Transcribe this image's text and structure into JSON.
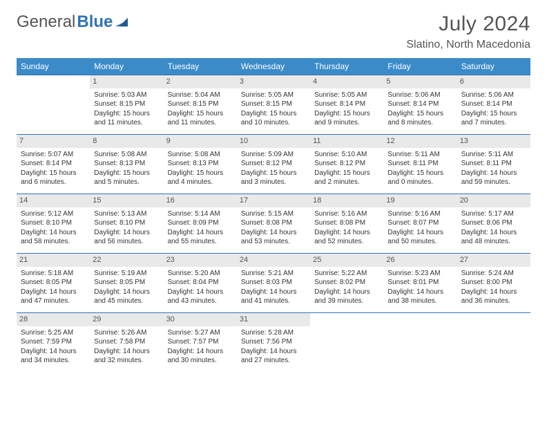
{
  "brand": {
    "text1": "General",
    "text2": "Blue"
  },
  "title": {
    "month": "July 2024",
    "location": "Slatino, North Macedonia"
  },
  "colors": {
    "header_bg": "#3b8bc9",
    "header_text": "#ffffff",
    "border": "#2f74b5",
    "daynum_bg": "#e9e9e9",
    "body_text": "#333333"
  },
  "weekdays": [
    "Sunday",
    "Monday",
    "Tuesday",
    "Wednesday",
    "Thursday",
    "Friday",
    "Saturday"
  ],
  "weeks": [
    [
      null,
      {
        "day": "1",
        "sunrise": "Sunrise: 5:03 AM",
        "sunset": "Sunset: 8:15 PM",
        "daylight": "Daylight: 15 hours and 11 minutes."
      },
      {
        "day": "2",
        "sunrise": "Sunrise: 5:04 AM",
        "sunset": "Sunset: 8:15 PM",
        "daylight": "Daylight: 15 hours and 11 minutes."
      },
      {
        "day": "3",
        "sunrise": "Sunrise: 5:05 AM",
        "sunset": "Sunset: 8:15 PM",
        "daylight": "Daylight: 15 hours and 10 minutes."
      },
      {
        "day": "4",
        "sunrise": "Sunrise: 5:05 AM",
        "sunset": "Sunset: 8:14 PM",
        "daylight": "Daylight: 15 hours and 9 minutes."
      },
      {
        "day": "5",
        "sunrise": "Sunrise: 5:06 AM",
        "sunset": "Sunset: 8:14 PM",
        "daylight": "Daylight: 15 hours and 8 minutes."
      },
      {
        "day": "6",
        "sunrise": "Sunrise: 5:06 AM",
        "sunset": "Sunset: 8:14 PM",
        "daylight": "Daylight: 15 hours and 7 minutes."
      }
    ],
    [
      {
        "day": "7",
        "sunrise": "Sunrise: 5:07 AM",
        "sunset": "Sunset: 8:14 PM",
        "daylight": "Daylight: 15 hours and 6 minutes."
      },
      {
        "day": "8",
        "sunrise": "Sunrise: 5:08 AM",
        "sunset": "Sunset: 8:13 PM",
        "daylight": "Daylight: 15 hours and 5 minutes."
      },
      {
        "day": "9",
        "sunrise": "Sunrise: 5:08 AM",
        "sunset": "Sunset: 8:13 PM",
        "daylight": "Daylight: 15 hours and 4 minutes."
      },
      {
        "day": "10",
        "sunrise": "Sunrise: 5:09 AM",
        "sunset": "Sunset: 8:12 PM",
        "daylight": "Daylight: 15 hours and 3 minutes."
      },
      {
        "day": "11",
        "sunrise": "Sunrise: 5:10 AM",
        "sunset": "Sunset: 8:12 PM",
        "daylight": "Daylight: 15 hours and 2 minutes."
      },
      {
        "day": "12",
        "sunrise": "Sunrise: 5:11 AM",
        "sunset": "Sunset: 8:11 PM",
        "daylight": "Daylight: 15 hours and 0 minutes."
      },
      {
        "day": "13",
        "sunrise": "Sunrise: 5:11 AM",
        "sunset": "Sunset: 8:11 PM",
        "daylight": "Daylight: 14 hours and 59 minutes."
      }
    ],
    [
      {
        "day": "14",
        "sunrise": "Sunrise: 5:12 AM",
        "sunset": "Sunset: 8:10 PM",
        "daylight": "Daylight: 14 hours and 58 minutes."
      },
      {
        "day": "15",
        "sunrise": "Sunrise: 5:13 AM",
        "sunset": "Sunset: 8:10 PM",
        "daylight": "Daylight: 14 hours and 56 minutes."
      },
      {
        "day": "16",
        "sunrise": "Sunrise: 5:14 AM",
        "sunset": "Sunset: 8:09 PM",
        "daylight": "Daylight: 14 hours and 55 minutes."
      },
      {
        "day": "17",
        "sunrise": "Sunrise: 5:15 AM",
        "sunset": "Sunset: 8:08 PM",
        "daylight": "Daylight: 14 hours and 53 minutes."
      },
      {
        "day": "18",
        "sunrise": "Sunrise: 5:16 AM",
        "sunset": "Sunset: 8:08 PM",
        "daylight": "Daylight: 14 hours and 52 minutes."
      },
      {
        "day": "19",
        "sunrise": "Sunrise: 5:16 AM",
        "sunset": "Sunset: 8:07 PM",
        "daylight": "Daylight: 14 hours and 50 minutes."
      },
      {
        "day": "20",
        "sunrise": "Sunrise: 5:17 AM",
        "sunset": "Sunset: 8:06 PM",
        "daylight": "Daylight: 14 hours and 48 minutes."
      }
    ],
    [
      {
        "day": "21",
        "sunrise": "Sunrise: 5:18 AM",
        "sunset": "Sunset: 8:05 PM",
        "daylight": "Daylight: 14 hours and 47 minutes."
      },
      {
        "day": "22",
        "sunrise": "Sunrise: 5:19 AM",
        "sunset": "Sunset: 8:05 PM",
        "daylight": "Daylight: 14 hours and 45 minutes."
      },
      {
        "day": "23",
        "sunrise": "Sunrise: 5:20 AM",
        "sunset": "Sunset: 8:04 PM",
        "daylight": "Daylight: 14 hours and 43 minutes."
      },
      {
        "day": "24",
        "sunrise": "Sunrise: 5:21 AM",
        "sunset": "Sunset: 8:03 PM",
        "daylight": "Daylight: 14 hours and 41 minutes."
      },
      {
        "day": "25",
        "sunrise": "Sunrise: 5:22 AM",
        "sunset": "Sunset: 8:02 PM",
        "daylight": "Daylight: 14 hours and 39 minutes."
      },
      {
        "day": "26",
        "sunrise": "Sunrise: 5:23 AM",
        "sunset": "Sunset: 8:01 PM",
        "daylight": "Daylight: 14 hours and 38 minutes."
      },
      {
        "day": "27",
        "sunrise": "Sunrise: 5:24 AM",
        "sunset": "Sunset: 8:00 PM",
        "daylight": "Daylight: 14 hours and 36 minutes."
      }
    ],
    [
      {
        "day": "28",
        "sunrise": "Sunrise: 5:25 AM",
        "sunset": "Sunset: 7:59 PM",
        "daylight": "Daylight: 14 hours and 34 minutes."
      },
      {
        "day": "29",
        "sunrise": "Sunrise: 5:26 AM",
        "sunset": "Sunset: 7:58 PM",
        "daylight": "Daylight: 14 hours and 32 minutes."
      },
      {
        "day": "30",
        "sunrise": "Sunrise: 5:27 AM",
        "sunset": "Sunset: 7:57 PM",
        "daylight": "Daylight: 14 hours and 30 minutes."
      },
      {
        "day": "31",
        "sunrise": "Sunrise: 5:28 AM",
        "sunset": "Sunset: 7:56 PM",
        "daylight": "Daylight: 14 hours and 27 minutes."
      },
      null,
      null,
      null
    ]
  ]
}
